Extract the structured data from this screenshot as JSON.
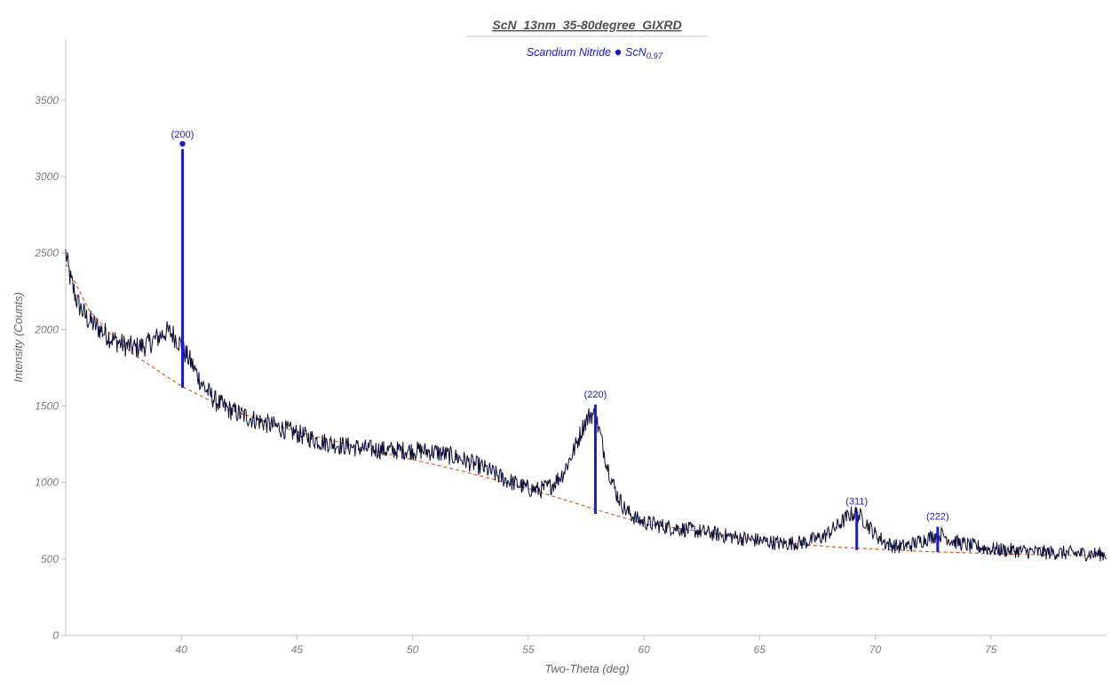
{
  "chart_data": {
    "type": "line",
    "title": "ScN_13nm_35-80degree_GIXRD",
    "legend": {
      "phase_name": "Scandium Nitride",
      "formula_base": "ScN",
      "formula_subscript": "0.97",
      "marker_color": "#1a1ad0",
      "placement": "top-center"
    },
    "xlabel": "Two-Theta (deg)",
    "ylabel": "Intensity (Counts)",
    "xlim": [
      35,
      80
    ],
    "ylim": [
      0,
      3900
    ],
    "x_ticks": [
      40,
      45,
      50,
      55,
      60,
      65,
      70,
      75
    ],
    "y_ticks": [
      0,
      500,
      1000,
      1500,
      2000,
      2500,
      3000,
      3500
    ],
    "grid": false,
    "series": [
      {
        "color": "#0c0c3a",
        "x": [
          35.0,
          35.2,
          35.5,
          35.8,
          36.0,
          36.5,
          37.0,
          37.5,
          38.0,
          38.5,
          39.0,
          39.3,
          39.6,
          39.9,
          40.1,
          40.4,
          40.7,
          41.0,
          41.5,
          42.0,
          43.0,
          44.0,
          45.0,
          46.0,
          47.0,
          48.0,
          49.0,
          50.0,
          51.0,
          52.0,
          53.0,
          54.0,
          55.0,
          55.5,
          56.0,
          56.5,
          57.0,
          57.4,
          57.7,
          57.9,
          58.1,
          58.4,
          58.8,
          59.2,
          59.7,
          60.0,
          61.0,
          62.0,
          63.0,
          64.0,
          65.0,
          66.0,
          67.0,
          67.8,
          68.4,
          68.9,
          69.2,
          69.6,
          70.0,
          70.5,
          71.0,
          71.5,
          72.0,
          72.5,
          72.9,
          73.3,
          74.0,
          75.0,
          76.0,
          77.0,
          78.0,
          79.0,
          80.0
        ],
        "values": [
          2500,
          2330,
          2180,
          2100,
          2060,
          2000,
          1940,
          1900,
          1880,
          1900,
          1950,
          1985,
          1975,
          1920,
          1860,
          1790,
          1700,
          1620,
          1530,
          1480,
          1420,
          1370,
          1320,
          1270,
          1240,
          1220,
          1210,
          1210,
          1200,
          1160,
          1100,
          1020,
          960,
          950,
          980,
          1060,
          1220,
          1380,
          1450,
          1430,
          1320,
          1120,
          930,
          820,
          760,
          740,
          710,
          690,
          665,
          640,
          620,
          600,
          610,
          650,
          720,
          790,
          800,
          740,
          660,
          600,
          580,
          590,
          620,
          650,
          660,
          620,
          590,
          565,
          555,
          545,
          540,
          535,
          530
        ]
      },
      {
        "color": "#e05a1e",
        "x": [
          35.0,
          36.0,
          37.0,
          38.0,
          40.0,
          42.0,
          45.0,
          48.0,
          50.0,
          52.0,
          55.0,
          58.0,
          60.0,
          62.0,
          65.0,
          68.0,
          70.0,
          72.0,
          75.0,
          78.0,
          80.0
        ],
        "values": [
          2430,
          2130,
          1960,
          1830,
          1630,
          1480,
          1330,
          1220,
          1150,
          1080,
          960,
          820,
          730,
          690,
          620,
          580,
          565,
          550,
          535,
          525,
          520
        ]
      }
    ],
    "reference_peaks": [
      {
        "label": "(200)",
        "x": 40.05,
        "top": 3180,
        "base": 1620,
        "marker": true
      },
      {
        "label": "(220)",
        "x": 57.9,
        "top": 1510,
        "base": 795,
        "marker": false
      },
      {
        "label": "(311)",
        "x": 69.2,
        "top": 810,
        "base": 558,
        "marker": false
      },
      {
        "label": "(222)",
        "x": 72.7,
        "top": 710,
        "base": 545,
        "marker": false
      }
    ]
  }
}
